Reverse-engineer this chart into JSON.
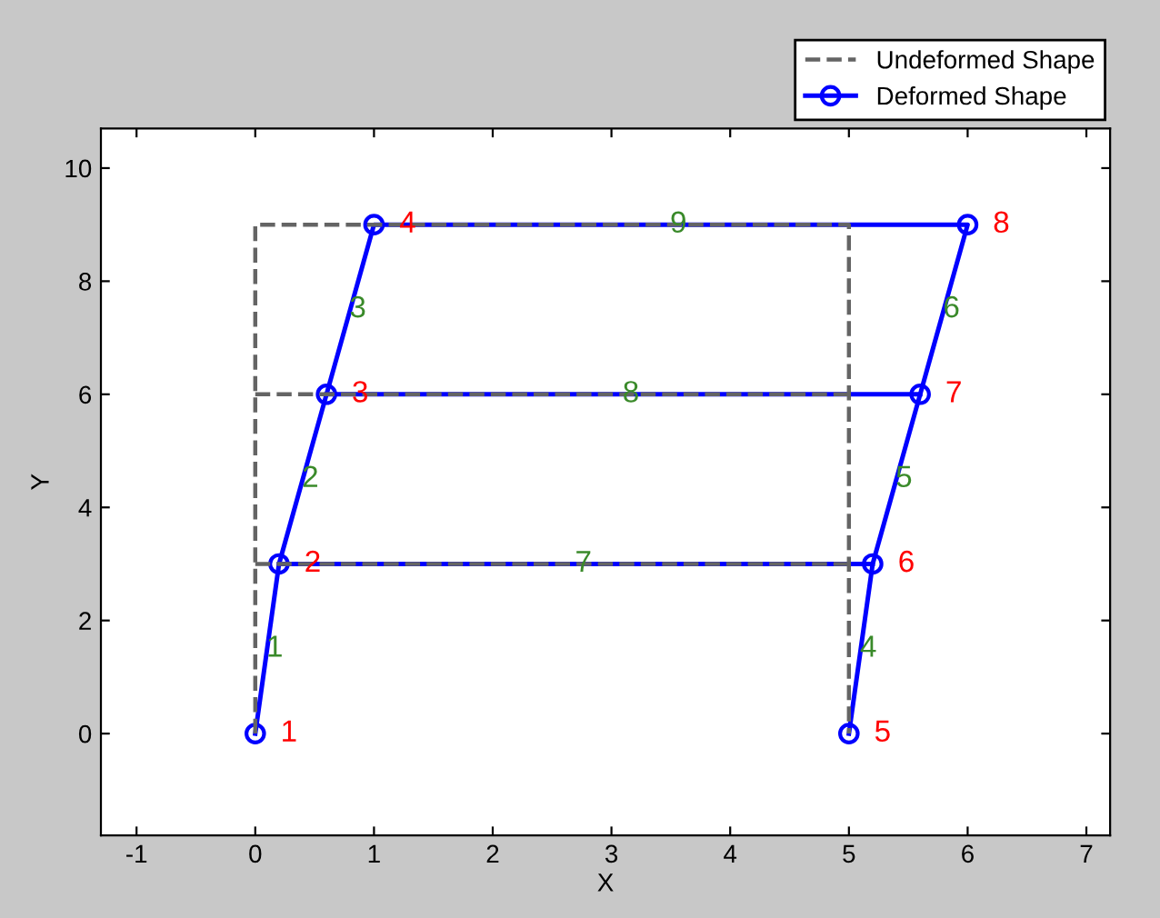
{
  "chart_data": {
    "type": "line",
    "xlabel": "X",
    "ylabel": "Y",
    "xlim": [
      -1.3,
      7.2
    ],
    "ylim": [
      -1.8,
      10.7
    ],
    "xticks": [
      -1,
      0,
      1,
      2,
      3,
      4,
      5,
      6,
      7
    ],
    "yticks": [
      0,
      2,
      4,
      6,
      8,
      10
    ],
    "grid": false,
    "legend": "top right",
    "series": [
      {
        "name": "Undeformed Shape",
        "color": "#646464",
        "line_style": "dashed",
        "marker": "none",
        "x": [
          0,
          0,
          5,
          5
        ],
        "values": [
          0,
          9,
          9,
          0
        ]
      },
      {
        "color": "#646464",
        "line_style": "dashed",
        "marker": "none",
        "x": [
          0,
          5
        ],
        "values": [
          3,
          3
        ]
      },
      {
        "color": "#646464",
        "line_style": "dashed",
        "marker": "none",
        "x": [
          0,
          5
        ],
        "values": [
          6,
          6
        ]
      },
      {
        "name": "Deformed Shape",
        "color": "#0000ff",
        "line_style": "solid",
        "marker": "circle",
        "x": [
          0,
          0.2,
          0.6,
          1,
          6,
          5.6,
          5.2,
          5
        ],
        "values": [
          0,
          3,
          6,
          9,
          9,
          6,
          3,
          0
        ]
      },
      {
        "color": "#0000ff",
        "line_style": "solid",
        "marker": "none",
        "x": [
          0.2,
          5.2
        ],
        "values": [
          3,
          3
        ]
      },
      {
        "color": "#0000ff",
        "line_style": "solid",
        "marker": "none",
        "x": [
          0.6,
          5.6
        ],
        "values": [
          6,
          6
        ]
      }
    ],
    "annotations": [
      {
        "text": "1",
        "x": 0,
        "y": 0
      },
      {
        "text": "2",
        "x": 0.2,
        "y": 3
      },
      {
        "text": "3",
        "x": 0.6,
        "y": 6
      },
      {
        "text": "4",
        "x": 1,
        "y": 9
      },
      {
        "text": "5",
        "x": 5,
        "y": 0
      },
      {
        "text": "6",
        "x": 5.2,
        "y": 3
      },
      {
        "text": "7",
        "x": 5.6,
        "y": 6
      },
      {
        "text": "8",
        "x": 6,
        "y": 9
      },
      {
        "text": "1",
        "x": 0.1,
        "y": 1.5
      },
      {
        "text": "2",
        "x": 0.4,
        "y": 4.5
      },
      {
        "text": "3",
        "x": 0.8,
        "y": 7.5
      },
      {
        "text": "4",
        "x": 5.1,
        "y": 1.5
      },
      {
        "text": "5",
        "x": 5.4,
        "y": 4.5
      },
      {
        "text": "6",
        "x": 5.8,
        "y": 7.5
      },
      {
        "text": "7",
        "x": 2.7,
        "y": 3
      },
      {
        "text": "8",
        "x": 3.1,
        "y": 6
      },
      {
        "text": "9",
        "x": 3.5,
        "y": 9
      }
    ]
  }
}
